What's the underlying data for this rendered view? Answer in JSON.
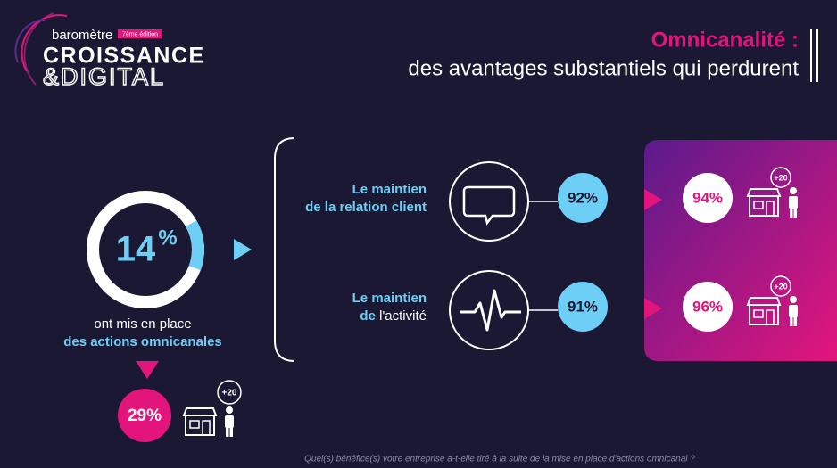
{
  "logo": {
    "top": "baromètre",
    "edition": "7ème édition",
    "line1": "CROISSANCE",
    "line2": "&DIGITAL"
  },
  "header": {
    "title": "Omnicanalité :",
    "subtitle": "des avantages substantiels qui perdurent"
  },
  "donut": {
    "value": 14,
    "unit": "%",
    "caption1": "ont mis en place",
    "caption2": "des actions omnicanales"
  },
  "sub_result": {
    "value": "29%",
    "badge": "+20"
  },
  "benefits": [
    {
      "line1": "Le maintien",
      "line2a": "de la relation client",
      "line2b": "",
      "value": "92%",
      "highlight": "94%",
      "badge": "+20"
    },
    {
      "line1": "Le maintien",
      "line2a": "de",
      "line2b": " l'activité",
      "value": "91%",
      "highlight": "96%",
      "badge": "+20"
    }
  ],
  "footer": "Quel(s) bénéfice(s) votre entreprise a-t-elle tiré à la suite de la mise en place d'actions omnicanal ?"
}
